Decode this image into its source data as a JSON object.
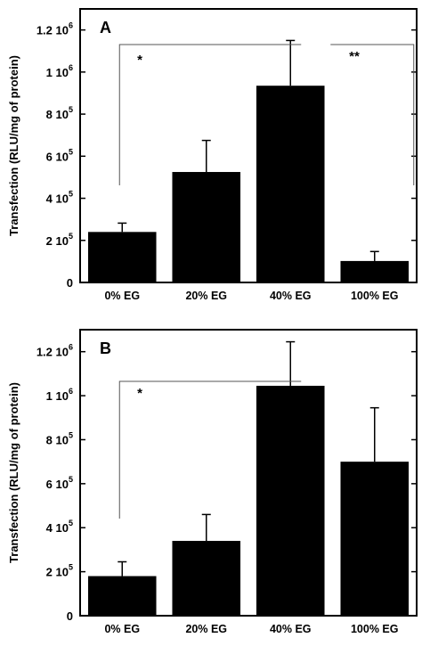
{
  "chart_data": [
    {
      "type": "bar",
      "panel_label": "A",
      "ylabel": "Transfection (RLU/mg of protein)",
      "categories": [
        "0% EG",
        "20% EG",
        "40% EG",
        "100% EG"
      ],
      "values": [
        240000,
        525000,
        935000,
        102000
      ],
      "error": [
        42000,
        150000,
        215000,
        45000
      ],
      "ylim": [
        0,
        1300000
      ],
      "yticks": [
        {
          "value": 0,
          "base": "0",
          "exp": ""
        },
        {
          "value": 200000,
          "base": "2 10",
          "exp": "5"
        },
        {
          "value": 400000,
          "base": "4 10",
          "exp": "5"
        },
        {
          "value": 600000,
          "base": "6 10",
          "exp": "5"
        },
        {
          "value": 800000,
          "base": "8 10",
          "exp": "5"
        },
        {
          "value": 1000000,
          "base": "1 10",
          "exp": "6"
        },
        {
          "value": 1200000,
          "base": "1.2 10",
          "exp": "6"
        }
      ],
      "bar_color": "#000000",
      "significance": [
        {
          "from": 0,
          "to": 2,
          "label": "*"
        },
        {
          "from": 2,
          "to": 3,
          "label": "**"
        }
      ]
    },
    {
      "type": "bar",
      "panel_label": "B",
      "ylabel": "Transfection (RLU/mg of protein)",
      "categories": [
        "0% EG",
        "20% EG",
        "40% EG",
        "100% EG"
      ],
      "values": [
        180000,
        340000,
        1045000,
        700000
      ],
      "error": [
        65000,
        120000,
        200000,
        245000
      ],
      "ylim": [
        0,
        1300000
      ],
      "yticks": [
        {
          "value": 0,
          "base": "0",
          "exp": ""
        },
        {
          "value": 200000,
          "base": "2 10",
          "exp": "5"
        },
        {
          "value": 400000,
          "base": "4 10",
          "exp": "5"
        },
        {
          "value": 600000,
          "base": "6 10",
          "exp": "5"
        },
        {
          "value": 800000,
          "base": "8 10",
          "exp": "5"
        },
        {
          "value": 1000000,
          "base": "1 10",
          "exp": "6"
        },
        {
          "value": 1200000,
          "base": "1.2 10",
          "exp": "6"
        }
      ],
      "bar_color": "#000000",
      "significance": [
        {
          "from": 0,
          "to": 2,
          "label": "*"
        }
      ]
    }
  ]
}
